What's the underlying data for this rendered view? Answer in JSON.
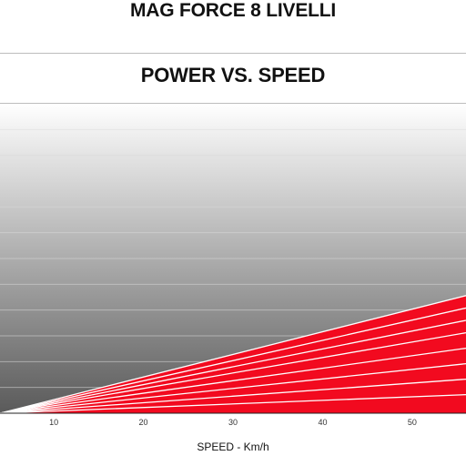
{
  "page": {
    "main_title": "MAG FORCE 8 LIVELLI"
  },
  "colors": {
    "fill": "#f20a1f",
    "level_line": "#ffffff",
    "background_top": "#ffffff",
    "background_bottom": "#5a5a5a",
    "grid": "#d9d9d9"
  },
  "chart_data": {
    "type": "area",
    "title": "POWER VS. SPEED",
    "xlabel": "SPEED - Km/h",
    "ylabel": "",
    "x_ticks": [
      10,
      20,
      30,
      40,
      50
    ],
    "xlim": [
      4,
      56
    ],
    "ylim": [
      0,
      100
    ],
    "grid": "horizontal",
    "series": [
      {
        "values": [
          [
            4,
            0
          ],
          [
            56,
            38
          ]
        ]
      },
      {
        "values": [
          [
            4,
            0
          ],
          [
            56,
            34
          ]
        ]
      },
      {
        "values": [
          [
            4,
            0
          ],
          [
            56,
            30
          ]
        ]
      },
      {
        "values": [
          [
            4,
            0
          ],
          [
            56,
            26
          ]
        ]
      },
      {
        "values": [
          [
            4,
            0
          ],
          [
            56,
            21
          ]
        ]
      },
      {
        "values": [
          [
            4,
            0
          ],
          [
            56,
            16
          ]
        ]
      },
      {
        "values": [
          [
            4,
            0
          ],
          [
            56,
            11
          ]
        ]
      },
      {
        "values": [
          [
            4,
            0
          ],
          [
            56,
            6
          ]
        ]
      }
    ]
  }
}
